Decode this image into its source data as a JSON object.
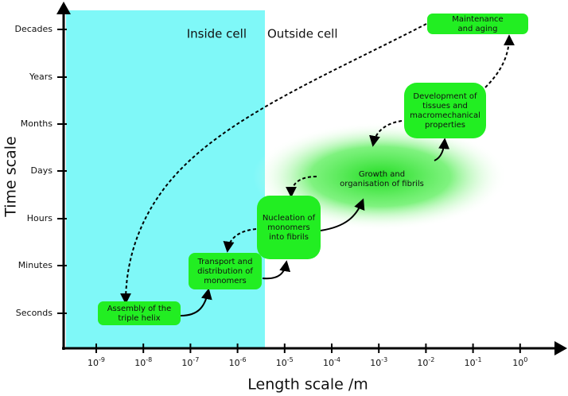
{
  "axes": {
    "y_label": "Time scale",
    "x_label": "Length scale /m",
    "y_ticks": [
      "Decades",
      "Years",
      "Months",
      "Days",
      "Hours",
      "Minutes",
      "Seconds"
    ],
    "x_ticks": [
      {
        "base": "10",
        "exponent": "-9"
      },
      {
        "base": "10",
        "exponent": "-8"
      },
      {
        "base": "10",
        "exponent": "-7"
      },
      {
        "base": "10",
        "exponent": "-6"
      },
      {
        "base": "10",
        "exponent": "-5"
      },
      {
        "base": "10",
        "exponent": "-4"
      },
      {
        "base": "10",
        "exponent": "-3"
      },
      {
        "base": "10",
        "exponent": "-2"
      },
      {
        "base": "10",
        "exponent": "-1"
      },
      {
        "base": "10",
        "exponent": "0"
      }
    ]
  },
  "regions": {
    "inside": "Inside cell",
    "outside": "Outside cell"
  },
  "nodes": [
    {
      "lines": [
        "Maintenance",
        "and aging"
      ]
    },
    {
      "lines": [
        "Development of",
        "tissues and",
        "macromechanical",
        "properties"
      ]
    },
    {
      "lines": [
        "Growth and",
        "organisation of fibrils"
      ]
    },
    {
      "lines": [
        "Nucleation of",
        "monomers",
        "into fibrils"
      ]
    },
    {
      "lines": [
        "Transport and",
        "distribution of",
        "monomers"
      ]
    },
    {
      "lines": [
        "Assembly of the",
        "triple helix"
      ]
    }
  ]
}
